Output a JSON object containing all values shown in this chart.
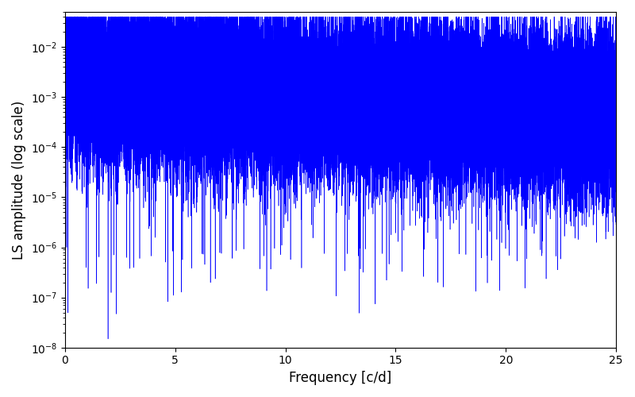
{
  "xlabel": "Frequency [c/d]",
  "ylabel": "LS amplitude (log scale)",
  "xlim": [
    0,
    25
  ],
  "ylim": [
    1e-08,
    0.05
  ],
  "line_color": "#0000FF",
  "linewidth": 0.4,
  "figsize": [
    8.0,
    5.0
  ],
  "dpi": 100,
  "yscale": "log",
  "seed": 42,
  "n_points": 50000,
  "freq_max": 25.0,
  "xticks": [
    0,
    5,
    10,
    15,
    20,
    25
  ]
}
